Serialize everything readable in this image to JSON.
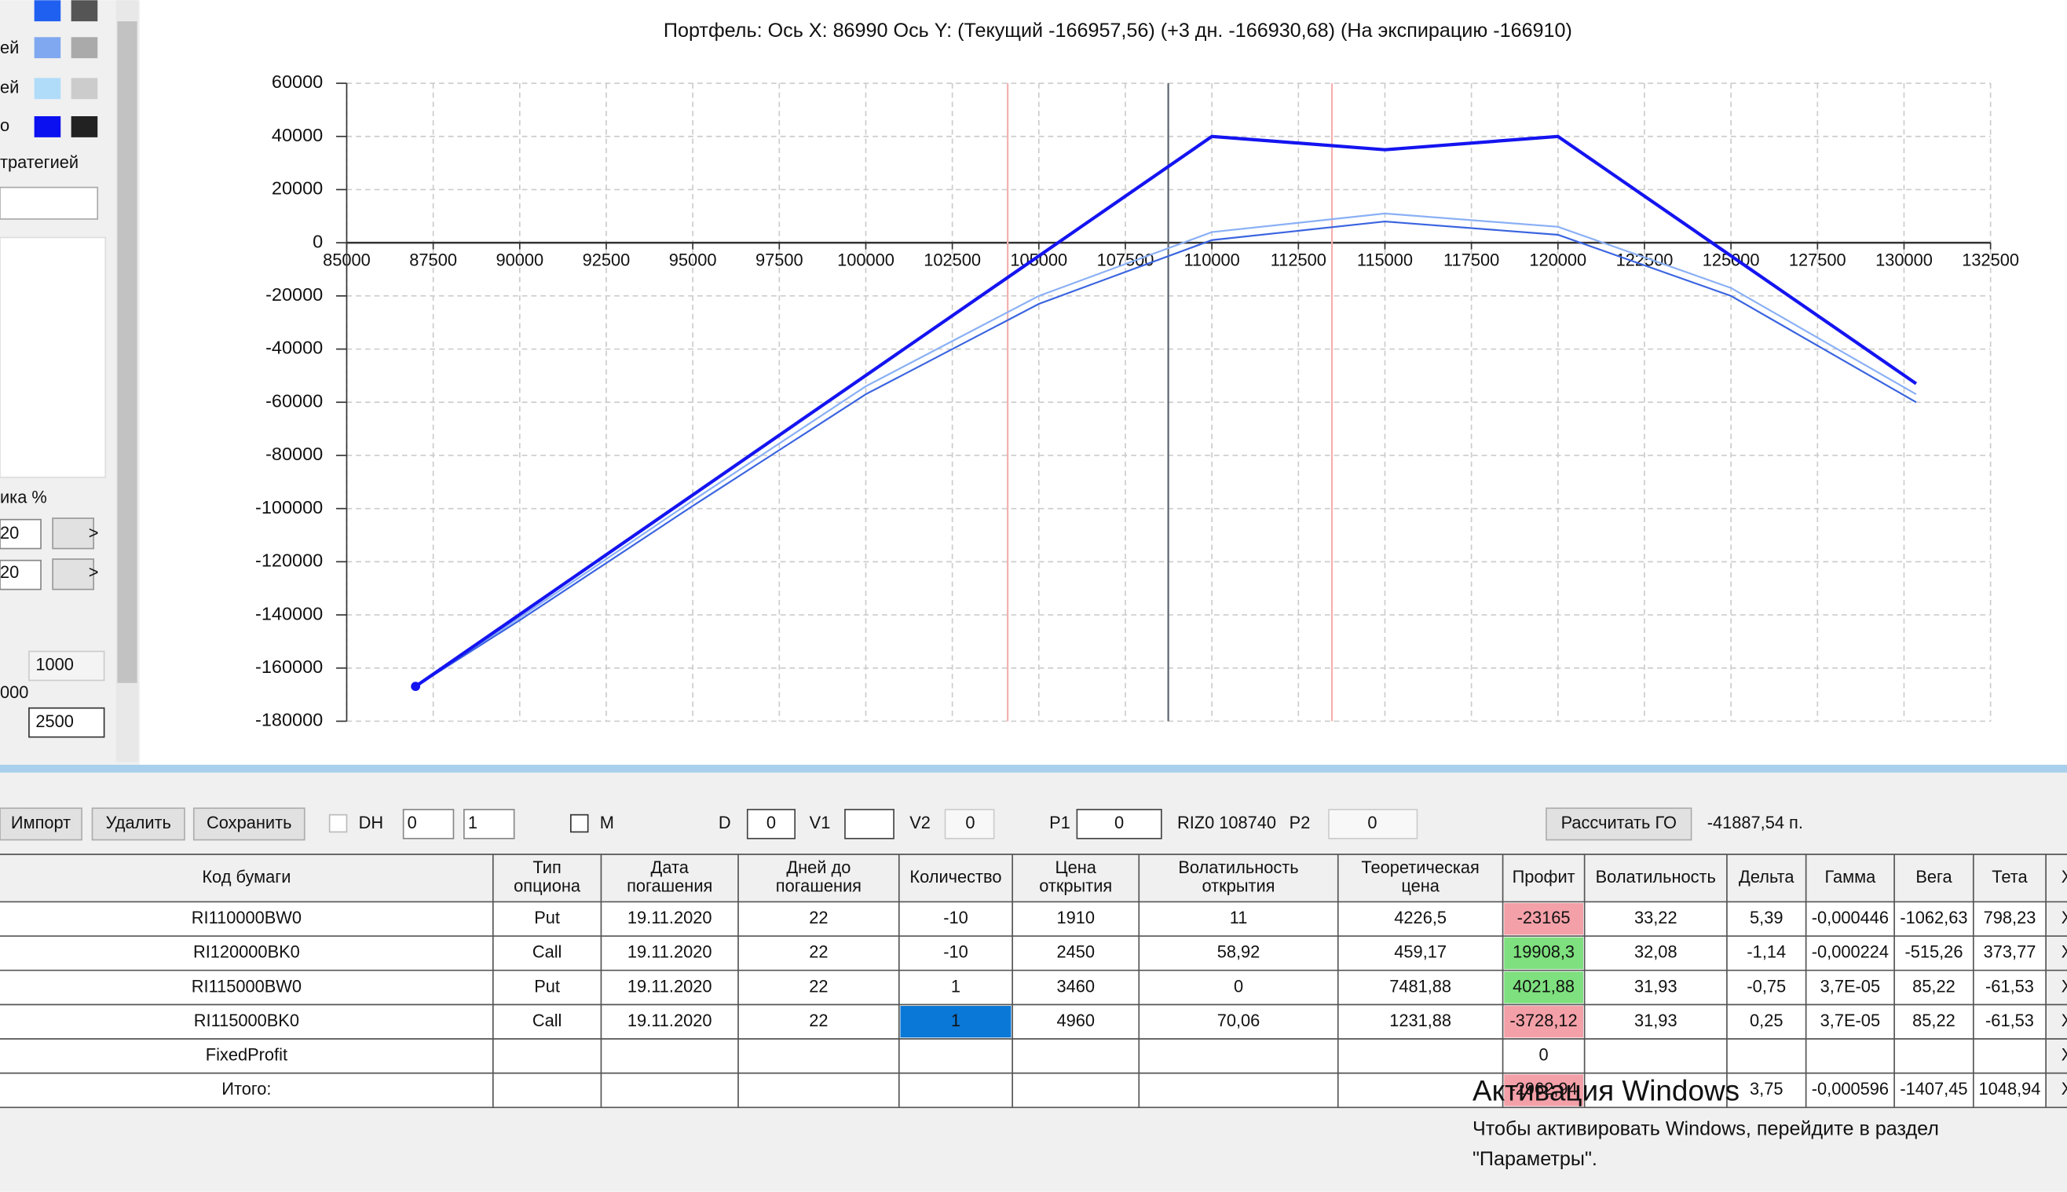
{
  "chart_data": {
    "type": "line",
    "title": "Портфель: Ось X: 86990 Ось Y:  (Текущий -166957,56)  (+3 дн. -166930,68)  (На экспирацию -166910)",
    "xlim": [
      85000,
      132500
    ],
    "xticks": [
      85000,
      87500,
      90000,
      92500,
      95000,
      97500,
      100000,
      102500,
      105000,
      107500,
      110000,
      112500,
      115000,
      117500,
      120000,
      122500,
      125000,
      127500,
      130000,
      132500
    ],
    "ylim": [
      -180000,
      60000
    ],
    "yticks": [
      -180000,
      -160000,
      -140000,
      -120000,
      -100000,
      -80000,
      -60000,
      -40000,
      -20000,
      0,
      20000,
      40000,
      60000
    ],
    "grid": true,
    "series": [
      {
        "color": "#1414f0",
        "x": [
          86990,
          110000,
          115000,
          120000,
          130350
        ],
        "values": [
          -166910,
          40000,
          35000,
          40000,
          -53000
        ]
      },
      {
        "color": "#3a64e0",
        "x": [
          86990,
          90000,
          95000,
          100000,
          105000,
          110000,
          115000,
          120000,
          125000,
          130350
        ],
        "values": [
          -166957.56,
          -142000,
          -99000,
          -57000,
          -23000,
          1000,
          8000,
          3000,
          -20000,
          -60000
        ]
      },
      {
        "color": "#8ab0f5",
        "x": [
          86990,
          90000,
          95000,
          100000,
          105000,
          110000,
          115000,
          120000,
          125000,
          130350
        ],
        "values": [
          -166930.68,
          -141000,
          -97000,
          -54000,
          -20000,
          4000,
          11000,
          6000,
          -17000,
          -57000
        ]
      }
    ],
    "vlines": [
      {
        "value": 104100,
        "color": "#f4b0b0"
      },
      {
        "value": 113470,
        "color": "#f4b0b0"
      },
      {
        "value": 108740,
        "color": "#5a6570"
      }
    ]
  },
  "left_panel": {
    "labels": [
      "ей",
      "ей",
      "о",
      "тратегией",
      "ика %",
      "20",
      "20",
      ">",
      ">",
      "1000",
      "000",
      "2500"
    ]
  },
  "toolbar": {
    "import": "Импорт",
    "delete": "Удалить",
    "save": "Сохранить",
    "dh": "DH",
    "dh_spin1": "0",
    "dh_spin2": "1",
    "m": "M",
    "d": "D",
    "d_value": "0",
    "v1": "V1",
    "v2": "V2",
    "v2_value": "0",
    "p1": "P1",
    "p1_value": "0",
    "underlying": "RIZ0 108740",
    "p2": "P2",
    "p2_value": "0",
    "calc": "Рассчитать ГО",
    "margin": "-41887,54 п."
  },
  "table": {
    "headers": [
      [
        "Код бумаги"
      ],
      [
        "Тип",
        "опциона"
      ],
      [
        "Дата",
        "погашения"
      ],
      [
        "Дней до",
        "погашения"
      ],
      [
        "Количество"
      ],
      [
        "Цена",
        "открытия"
      ],
      [
        "Волатильность",
        "открытия"
      ],
      [
        "Теоретическая",
        "цена"
      ],
      [
        "Профит"
      ],
      [
        "Волатильность"
      ],
      [
        "Дельта"
      ],
      [
        "Гамма"
      ],
      [
        "Вега"
      ],
      [
        "Тета"
      ],
      [
        "X"
      ]
    ],
    "rows": [
      [
        "RI110000BW0",
        "Put",
        "19.11.2020",
        "22",
        "-10",
        "1910",
        "11",
        "4226,5",
        "-23165",
        "33,22",
        "5,39",
        "-0,000446",
        "-1062,63",
        "798,23",
        "X"
      ],
      [
        "RI120000BK0",
        "Call",
        "19.11.2020",
        "22",
        "-10",
        "2450",
        "58,92",
        "459,17",
        "19908,3",
        "32,08",
        "-1,14",
        "-0,000224",
        "-515,26",
        "373,77",
        "X"
      ],
      [
        "RI115000BW0",
        "Put",
        "19.11.2020",
        "22",
        "1",
        "3460",
        "0",
        "7481,88",
        "4021,88",
        "31,93",
        "-0,75",
        "3,7E-05",
        "85,22",
        "-61,53",
        "X"
      ],
      [
        "RI115000BK0",
        "Call",
        "19.11.2020",
        "22",
        "1",
        "4960",
        "70,06",
        "1231,88",
        "-3728,12",
        "31,93",
        "0,25",
        "3,7E-05",
        "85,22",
        "-61,53",
        "X"
      ],
      [
        "FixedProfit",
        "",
        "",
        "",
        "",
        "",
        "",
        "",
        "0",
        "",
        "",
        "",
        "",
        "",
        "X"
      ],
      [
        "Итого:",
        "",
        "",
        "",
        "",
        "",
        "",
        "",
        "-2962,94",
        "",
        "3,75",
        "-0,000596",
        "-1407,45",
        "1048,94",
        "X"
      ]
    ],
    "profit_fill": [
      "#f4a0a8",
      "#7ee07e",
      "#7ee07e",
      "#f4a0a8",
      "#ffffff",
      "#f4a0a8"
    ]
  },
  "watermark": {
    "title": "Активация Windows",
    "line1": "Чтобы активировать Windows, перейдите в раздел",
    "line2": "\"Параметры\"."
  }
}
